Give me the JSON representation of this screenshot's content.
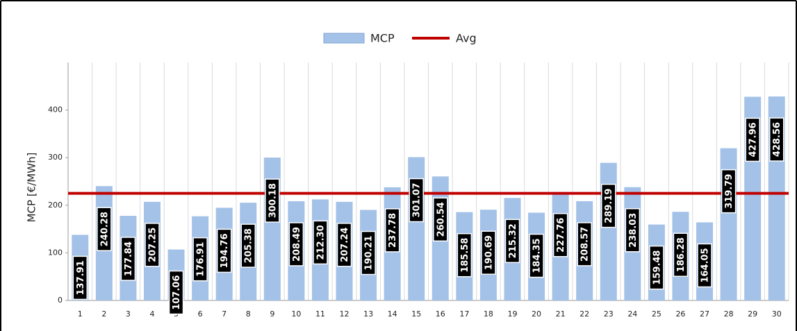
{
  "chart_data": {
    "type": "bar",
    "y_label": "MCP [€/MWh]",
    "categories": [
      "1",
      "2",
      "3",
      "4",
      "5",
      "6",
      "7",
      "8",
      "9",
      "10",
      "11",
      "12",
      "13",
      "14",
      "15",
      "16",
      "17",
      "18",
      "19",
      "20",
      "21",
      "22",
      "23",
      "24",
      "25",
      "26",
      "27",
      "28",
      "29",
      "30"
    ],
    "series": [
      {
        "name": "MCP",
        "color": "#a4c2e8",
        "values": [
          137.91,
          240.28,
          177.84,
          207.25,
          107.06,
          176.91,
          194.76,
          205.38,
          300.18,
          208.49,
          212.3,
          207.24,
          190.21,
          237.78,
          301.07,
          260.54,
          185.58,
          190.69,
          215.32,
          184.35,
          227.76,
          208.57,
          289.19,
          238.03,
          159.48,
          186.28,
          164.05,
          319.79,
          427.96,
          428.56
        ],
        "value_labels": [
          "137.91",
          "240.28",
          "177.84",
          "207.25",
          "107.06",
          "176.91",
          "194.76",
          "205.38",
          "300.18",
          "208.49",
          "212.30",
          "207.24",
          "190.21",
          "237.78",
          "301.07",
          "260.54",
          "185.58",
          "190.69",
          "215.32",
          "184.35",
          "227.76",
          "208.57",
          "289.19",
          "238.03",
          "159.48",
          "186.28",
          "164.05",
          "319.79",
          "427.96",
          "428.56"
        ]
      },
      {
        "name": "Avg",
        "color": "#c00000",
        "values": [
          225,
          225,
          225,
          225,
          225,
          225,
          225,
          225,
          225,
          225,
          225,
          225,
          225,
          225,
          225,
          225,
          225,
          225,
          225,
          225,
          225,
          225,
          225,
          225,
          225,
          225,
          225,
          225,
          225,
          225
        ]
      }
    ],
    "ylim": [
      0,
      500
    ],
    "yticks": [
      0,
      100,
      200,
      300,
      400
    ],
    "grid": true
  }
}
